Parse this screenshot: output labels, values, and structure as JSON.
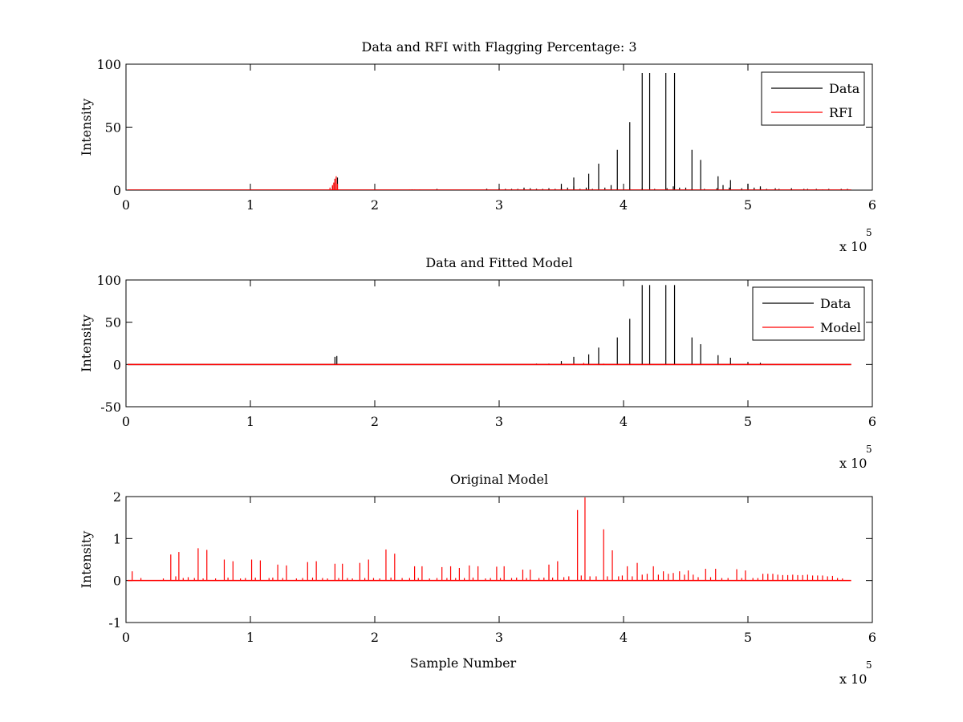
{
  "chart_data": [
    {
      "type": "line",
      "title": "Data and RFI with Flagging Percentage: 3",
      "xlabel": "",
      "ylabel": "Intensity",
      "xlim": [
        0,
        600000
      ],
      "ylim": [
        0,
        100
      ],
      "xticks": [
        0,
        1,
        2,
        3,
        4,
        5,
        6
      ],
      "yticks": [
        0,
        50,
        100
      ],
      "x_multiplier": {
        "base": "x 10",
        "exp": "5"
      },
      "legend": {
        "placement": "top-right",
        "entries": [
          {
            "label": "Data",
            "color": "#000000"
          },
          {
            "label": "RFI",
            "color": "#ff0000"
          }
        ]
      },
      "series": [
        {
          "name": "Data",
          "color": "#000000",
          "peaks": [
            [
              166000,
              3
            ],
            [
              168000,
              9
            ],
            [
              170000,
              10
            ],
            [
              230000,
              0.5
            ],
            [
              250000,
              1
            ],
            [
              290000,
              1
            ],
            [
              300000,
              1.5
            ],
            [
              320000,
              2
            ],
            [
              330000,
              1
            ],
            [
              340000,
              1.5
            ],
            [
              350000,
              2
            ],
            [
              360000,
              3
            ],
            [
              370000,
              2
            ],
            [
              390000,
              4
            ],
            [
              500000,
              5
            ],
            [
              510000,
              3
            ],
            [
              440000,
              3
            ],
            [
              450000,
              2
            ],
            [
              480000,
              4
            ],
            [
              290000,
              1
            ],
            [
              305000,
              1
            ],
            [
              315000,
              1
            ],
            [
              325000,
              1.5
            ],
            [
              335000,
              1
            ],
            [
              345000,
              1
            ],
            [
              355000,
              2
            ],
            [
              365000,
              1
            ],
            [
              375000,
              1
            ],
            [
              385000,
              2
            ],
            [
              395000,
              1
            ],
            [
              405000,
              1
            ],
            [
              415000,
              1.5
            ],
            [
              425000,
              1
            ],
            [
              435000,
              1.5
            ],
            [
              445000,
              2
            ],
            [
              455000,
              1
            ],
            [
              465000,
              1
            ],
            [
              475000,
              1.5
            ],
            [
              485000,
              2
            ],
            [
              495000,
              1.5
            ],
            [
              505000,
              2
            ],
            [
              515000,
              1
            ],
            [
              525000,
              1
            ],
            [
              535000,
              1.5
            ],
            [
              545000,
              1
            ],
            [
              555000,
              1
            ],
            [
              565000,
              1
            ],
            [
              575000,
              1
            ],
            [
              580000,
              1
            ],
            [
              290000,
              1
            ],
            [
              300000,
              1
            ],
            [
              310000,
              1
            ],
            [
              320000,
              1
            ],
            [
              330000,
              1
            ],
            [
              340000,
              1
            ],
            [
              350000,
              1
            ],
            [
              350000,
              5
            ],
            [
              360000,
              10
            ],
            [
              372000,
              13
            ],
            [
              380000,
              21
            ],
            [
              395000,
              32
            ],
            [
              405000,
              54
            ],
            [
              415000,
              93
            ],
            [
              421000,
              93
            ],
            [
              434000,
              93
            ],
            [
              441000,
              93
            ],
            [
              455000,
              32
            ],
            [
              462000,
              24
            ],
            [
              476000,
              11
            ],
            [
              486000,
              8
            ],
            [
              500000,
              5
            ],
            [
              510000,
              2
            ],
            [
              522000,
              1.5
            ],
            [
              535000,
              1
            ],
            [
              548000,
              1
            ],
            [
              560000,
              0.5
            ]
          ]
        },
        {
          "name": "RFI",
          "color": "#ff0000",
          "peaks": [
            [
              164000,
              2
            ],
            [
              166000,
              4
            ],
            [
              167000,
              6
            ],
            [
              168000,
              9
            ],
            [
              169000,
              11
            ],
            [
              170000,
              5
            ],
            [
              228000,
              0.5
            ],
            [
              232000,
              0.5
            ],
            [
              236000,
              0.5
            ]
          ]
        }
      ]
    },
    {
      "type": "line",
      "title": "Data and Fitted Model",
      "xlabel": "",
      "ylabel": "Intensity",
      "xlim": [
        0,
        600000
      ],
      "ylim": [
        -50,
        100
      ],
      "xticks": [
        0,
        1,
        2,
        3,
        4,
        5,
        6
      ],
      "yticks": [
        -50,
        0,
        50,
        100
      ],
      "x_multiplier": {
        "base": "x 10",
        "exp": "5"
      },
      "legend": {
        "placement": "top-right",
        "entries": [
          {
            "label": "Data",
            "color": "#000000"
          },
          {
            "label": "Model",
            "color": "#ff0000"
          }
        ]
      },
      "series": [
        {
          "name": "Data",
          "color": "#000000",
          "peaks": [
            [
              168000,
              9
            ],
            [
              169500,
              10
            ],
            [
              330000,
              1
            ],
            [
              340000,
              1
            ],
            [
              350000,
              4
            ],
            [
              360000,
              9
            ],
            [
              372000,
              12
            ],
            [
              380000,
              20
            ],
            [
              395000,
              32
            ],
            [
              405000,
              54
            ],
            [
              415000,
              94
            ],
            [
              421000,
              94
            ],
            [
              434000,
              94
            ],
            [
              441000,
              94
            ],
            [
              455000,
              32
            ],
            [
              462000,
              24
            ],
            [
              476000,
              11
            ],
            [
              486000,
              8
            ],
            [
              500000,
              3
            ],
            [
              510000,
              2
            ]
          ]
        },
        {
          "name": "Model",
          "color": "#ff0000",
          "peaks": [
            [
              5000,
              0.3
            ],
            [
              36000,
              0.5
            ],
            [
              42000,
              0.6
            ],
            [
              58000,
              0.7
            ],
            [
              166000,
              0.5
            ],
            [
              210000,
              0.6
            ],
            [
              360000,
              1.5
            ],
            [
              368000,
              1.8
            ],
            [
              384000,
              1
            ]
          ]
        }
      ]
    },
    {
      "type": "line",
      "title": "Original Model",
      "xlabel": "Sample Number",
      "ylabel": "Intensity",
      "xlim": [
        0,
        600000
      ],
      "ylim": [
        -1,
        2
      ],
      "xticks": [
        0,
        1,
        2,
        3,
        4,
        5,
        6
      ],
      "yticks": [
        -1,
        0,
        1,
        2
      ],
      "x_multiplier": {
        "base": "x 10",
        "exp": "5"
      },
      "series": [
        {
          "name": "",
          "color": "#ff0000",
          "peaks": [
            [
              5000,
              0.22
            ],
            [
              12000,
              0.06
            ],
            [
              30000,
              0.05
            ],
            [
              36000,
              0.62
            ],
            [
              40000,
              0.1
            ],
            [
              42500,
              0.68
            ],
            [
              46000,
              0.06
            ],
            [
              50000,
              0.08
            ],
            [
              55000,
              0.06
            ],
            [
              58000,
              0.77
            ],
            [
              62000,
              0.05
            ],
            [
              65000,
              0.73
            ],
            [
              72000,
              0.05
            ],
            [
              79000,
              0.5
            ],
            [
              82000,
              0.07
            ],
            [
              86000,
              0.46
            ],
            [
              92000,
              0.05
            ],
            [
              96000,
              0.06
            ],
            [
              101000,
              0.5
            ],
            [
              104000,
              0.07
            ],
            [
              108000,
              0.48
            ],
            [
              115000,
              0.06
            ],
            [
              118000,
              0.07
            ],
            [
              122000,
              0.38
            ],
            [
              126000,
              0.06
            ],
            [
              129000,
              0.36
            ],
            [
              137000,
              0.05
            ],
            [
              142000,
              0.06
            ],
            [
              146000,
              0.44
            ],
            [
              150000,
              0.07
            ],
            [
              153000,
              0.46
            ],
            [
              158000,
              0.06
            ],
            [
              162000,
              0.05
            ],
            [
              168000,
              0.4
            ],
            [
              171000,
              0.06
            ],
            [
              174000,
              0.4
            ],
            [
              178000,
              0.06
            ],
            [
              182000,
              0.05
            ],
            [
              188000,
              0.42
            ],
            [
              192000,
              0.06
            ],
            [
              195000,
              0.5
            ],
            [
              199000,
              0.06
            ],
            [
              204000,
              0.05
            ],
            [
              209000,
              0.74
            ],
            [
              213000,
              0.07
            ],
            [
              216000,
              0.64
            ],
            [
              222000,
              0.06
            ],
            [
              228000,
              0.06
            ],
            [
              232000,
              0.34
            ],
            [
              235000,
              0.06
            ],
            [
              238000,
              0.34
            ],
            [
              244000,
              0.05
            ],
            [
              250000,
              0.06
            ],
            [
              254000,
              0.32
            ],
            [
              258000,
              0.06
            ],
            [
              261000,
              0.34
            ],
            [
              265000,
              0.06
            ],
            [
              268000,
              0.3
            ],
            [
              272000,
              0.06
            ],
            [
              276000,
              0.36
            ],
            [
              279000,
              0.07
            ],
            [
              283000,
              0.34
            ],
            [
              289000,
              0.05
            ],
            [
              293000,
              0.06
            ],
            [
              298000,
              0.33
            ],
            [
              301000,
              0.06
            ],
            [
              304000,
              0.34
            ],
            [
              310000,
              0.06
            ],
            [
              314000,
              0.07
            ],
            [
              319000,
              0.26
            ],
            [
              322000,
              0.06
            ],
            [
              325000,
              0.26
            ],
            [
              332000,
              0.06
            ],
            [
              336000,
              0.07
            ],
            [
              340000,
              0.38
            ],
            [
              343000,
              0.07
            ],
            [
              347000,
              0.46
            ],
            [
              352000,
              0.08
            ],
            [
              356000,
              0.1
            ],
            [
              363000,
              1.68
            ],
            [
              366000,
              0.12
            ],
            [
              369000,
              1.98
            ],
            [
              373000,
              0.1
            ],
            [
              378000,
              0.1
            ],
            [
              384000,
              1.22
            ],
            [
              387000,
              0.1
            ],
            [
              391000,
              0.72
            ],
            [
              396000,
              0.1
            ],
            [
              399000,
              0.12
            ],
            [
              403000,
              0.34
            ],
            [
              407000,
              0.1
            ],
            [
              411000,
              0.42
            ],
            [
              415000,
              0.14
            ],
            [
              419000,
              0.16
            ],
            [
              424000,
              0.34
            ],
            [
              428000,
              0.14
            ],
            [
              432000,
              0.22
            ],
            [
              436000,
              0.16
            ],
            [
              440000,
              0.18
            ],
            [
              445000,
              0.22
            ],
            [
              449000,
              0.14
            ],
            [
              452000,
              0.24
            ],
            [
              456000,
              0.14
            ],
            [
              460000,
              0.08
            ],
            [
              466000,
              0.28
            ],
            [
              470000,
              0.08
            ],
            [
              474000,
              0.28
            ],
            [
              479000,
              0.06
            ],
            [
              484000,
              0.06
            ],
            [
              491000,
              0.27
            ],
            [
              495000,
              0.06
            ],
            [
              498000,
              0.24
            ],
            [
              504000,
              0.06
            ],
            [
              508000,
              0.06
            ],
            [
              512000,
              0.16
            ],
            [
              516000,
              0.16
            ],
            [
              520000,
              0.16
            ],
            [
              524000,
              0.14
            ],
            [
              528000,
              0.13
            ],
            [
              532000,
              0.13
            ],
            [
              536000,
              0.14
            ],
            [
              540000,
              0.13
            ],
            [
              544000,
              0.13
            ],
            [
              548000,
              0.14
            ],
            [
              552000,
              0.12
            ],
            [
              556000,
              0.12
            ],
            [
              560000,
              0.12
            ],
            [
              564000,
              0.1
            ],
            [
              568000,
              0.11
            ],
            [
              572000,
              0.06
            ],
            [
              576000,
              0.05
            ]
          ]
        }
      ]
    }
  ]
}
